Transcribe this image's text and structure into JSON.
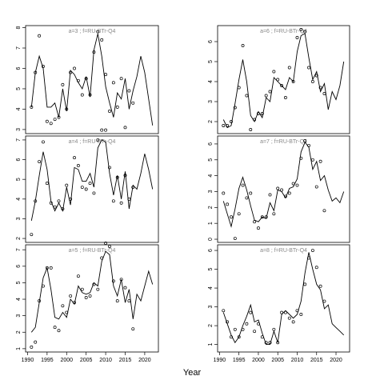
{
  "xlabel": "Year",
  "chart_data": [
    {
      "type": "line",
      "title": "a=3 ; f=RU-BTr-Q4",
      "xlim": [
        1989.5,
        2023.5
      ],
      "ylim": [
        2.8,
        8.1
      ],
      "yticks": [
        3,
        4,
        5,
        6,
        7,
        8
      ],
      "x": [
        1991,
        1992,
        1993,
        1994,
        1995,
        1996,
        1997,
        1998,
        1999,
        2000,
        2001,
        2002,
        2003,
        2004,
        2005,
        2006,
        2007,
        2008,
        2009,
        2010,
        2011,
        2012,
        2013,
        2014,
        2015,
        2016,
        2017,
        2018,
        2019,
        2020,
        2021,
        2022
      ],
      "values": [
        4.1,
        5.8,
        6.6,
        6.0,
        4.1,
        4.1,
        4.3,
        3.6,
        5.0,
        3.9,
        5.9,
        5.7,
        5.3,
        5.0,
        5.6,
        4.6,
        6.9,
        7.7,
        6.6,
        5.1,
        4.3,
        3.6,
        4.8,
        4.5,
        5.5,
        4.0,
        4.9,
        5.6,
        6.6,
        5.8,
        4.5,
        3.2
      ],
      "points_x": [
        1991,
        1992,
        1993,
        1994,
        1995,
        1996,
        1997,
        1998,
        1999,
        2000,
        2001,
        2002,
        2003,
        2004,
        2005,
        2006,
        2007,
        2008,
        2009,
        2010,
        2011,
        2012,
        2013,
        2014,
        2015,
        2016,
        2017
      ],
      "points": [
        4.1,
        5.8,
        7.6,
        6.1,
        3.4,
        3.3,
        3.5,
        3.6,
        5.2,
        4.0,
        5.8,
        6.0,
        5.4,
        4.7,
        5.5,
        4.7,
        6.8,
        7.8,
        7.4,
        5.7,
        3.9,
        5.3,
        4.1,
        5.5,
        3.1,
        4.9,
        4.3
      ]
    },
    {
      "type": "line",
      "title": "a=6 ; f=RU-BTr-Q4",
      "xlim": [
        1989.5,
        2023.5
      ],
      "ylim": [
        1.4,
        6.8
      ],
      "yticks": [
        2,
        3,
        4,
        5,
        6
      ],
      "x": [
        1991,
        1992,
        1993,
        1994,
        1995,
        1996,
        1997,
        1998,
        1999,
        2000,
        2001,
        2002,
        2003,
        2004,
        2005,
        2006,
        2007,
        2008,
        2009,
        2010,
        2011,
        2012,
        2013,
        2014,
        2015,
        2016,
        2017,
        2018,
        2019,
        2020,
        2021,
        2022
      ],
      "values": [
        2.1,
        1.7,
        1.8,
        2.9,
        4.1,
        5.1,
        4.0,
        2.3,
        2.0,
        2.5,
        2.2,
        3.2,
        3.0,
        4.2,
        4.0,
        3.8,
        3.6,
        4.2,
        4.0,
        5.5,
        6.3,
        6.4,
        5.2,
        4.1,
        4.5,
        3.5,
        3.9,
        2.6,
        3.5,
        3.1,
        3.8,
        5.0
      ],
      "points_x": [
        1991,
        1992,
        1993,
        1994,
        1995,
        1996,
        1997,
        1998,
        1999,
        2000,
        2001,
        2002,
        2003,
        2004,
        2005,
        2006,
        2007,
        2008,
        2009,
        2010,
        2011,
        2012,
        2013,
        2014,
        2015,
        2016,
        2017
      ],
      "points": [
        1.8,
        1.8,
        2.0,
        2.7,
        3.7,
        5.8,
        3.3,
        1.6,
        2.1,
        2.4,
        2.4,
        3.3,
        3.5,
        4.5,
        4.1,
        3.8,
        3.2,
        4.7,
        4.0,
        6.2,
        6.6,
        6.5,
        4.7,
        4.0,
        4.3,
        3.7,
        3.4
      ]
    },
    {
      "type": "line",
      "title": "a=4 ; f=RU-BTr-Q4",
      "xlim": [
        1989.5,
        2023.5
      ],
      "ylim": [
        1.8,
        7.2
      ],
      "yticks": [
        2,
        3,
        4,
        5,
        6,
        7
      ],
      "x": [
        1991,
        1992,
        1993,
        1994,
        1995,
        1996,
        1997,
        1998,
        1999,
        2000,
        2001,
        2002,
        2003,
        2004,
        2005,
        2006,
        2007,
        2008,
        2009,
        2010,
        2011,
        2012,
        2013,
        2014,
        2015,
        2016,
        2017,
        2018,
        2019,
        2020,
        2021,
        2022
      ],
      "values": [
        2.9,
        3.9,
        5.2,
        6.4,
        5.5,
        3.9,
        3.4,
        3.8,
        3.4,
        4.6,
        3.7,
        5.6,
        5.5,
        4.9,
        4.9,
        5.3,
        4.6,
        6.6,
        7.0,
        6.9,
        5.3,
        4.2,
        5.2,
        4.0,
        5.4,
        3.5,
        4.7,
        4.5,
        5.3,
        6.3,
        5.5,
        4.5
      ],
      "points_x": [
        1991,
        1992,
        1993,
        1994,
        1995,
        1996,
        1997,
        1998,
        1999,
        2000,
        2001,
        2002,
        2003,
        2004,
        2005,
        2006,
        2007,
        2008,
        2009,
        2010,
        2011,
        2012,
        2013,
        2014,
        2015,
        2016,
        2017
      ],
      "points": [
        2.2,
        3.9,
        5.9,
        6.9,
        4.8,
        3.8,
        3.6,
        3.9,
        3.5,
        4.7,
        4.0,
        6.1,
        5.7,
        4.6,
        4.5,
        4.8,
        4.3,
        7.0,
        7.5,
        7.5,
        5.6,
        3.9,
        5.1,
        3.8,
        5.2,
        4.0,
        4.6
      ]
    },
    {
      "type": "line",
      "title": "a=7 ; f=RU-BTr-Q4",
      "xlim": [
        1989.5,
        2023.5
      ],
      "ylim": [
        -0.2,
        6.5
      ],
      "yticks": [
        0,
        1,
        2,
        3,
        4,
        5,
        6
      ],
      "x": [
        1991,
        1992,
        1993,
        1994,
        1995,
        1996,
        1997,
        1998,
        1999,
        2000,
        2001,
        2002,
        2003,
        2004,
        2005,
        2006,
        2007,
        2008,
        2009,
        2010,
        2011,
        2012,
        2013,
        2014,
        2015,
        2016,
        2017,
        2018,
        2019,
        2020,
        2021,
        2022
      ],
      "values": [
        2.4,
        1.6,
        0.8,
        1.9,
        3.2,
        3.9,
        3.1,
        2.1,
        1.2,
        1.1,
        1.4,
        1.3,
        2.3,
        1.8,
        3.1,
        3.0,
        2.6,
        3.2,
        3.3,
        3.8,
        5.5,
        6.1,
        5.8,
        4.4,
        4.9,
        3.7,
        4.0,
        3.1,
        2.4,
        2.6,
        2.3,
        3.0
      ],
      "points_x": [
        1991,
        1992,
        1993,
        1994,
        1995,
        1996,
        1997,
        1998,
        1999,
        2000,
        2001,
        2002,
        2003,
        2004,
        2005,
        2006,
        2007,
        2008,
        2009,
        2010,
        2011,
        2012,
        2013,
        2014,
        2015,
        2016,
        2017
      ],
      "points": [
        2.9,
        2.2,
        1.4,
        0.05,
        1.6,
        3.4,
        2.6,
        2.9,
        1.1,
        0.7,
        1.4,
        1.4,
        2.8,
        1.6,
        3.2,
        3.1,
        2.7,
        2.9,
        3.5,
        3.4,
        5.1,
        6.2,
        5.9,
        5.0,
        3.3,
        4.9,
        1.8
      ]
    },
    {
      "type": "line",
      "title": "a=5 ; f=RU-BTr-Q4",
      "xlim": [
        1989.5,
        2023.5
      ],
      "ylim": [
        0.8,
        7.3
      ],
      "yticks": [
        1,
        2,
        3,
        4,
        5,
        6,
        7
      ],
      "xticks": [
        1990,
        1995,
        2000,
        2005,
        2010,
        2015,
        2020
      ],
      "x": [
        1991,
        1992,
        1993,
        1994,
        1995,
        1996,
        1997,
        1998,
        1999,
        2000,
        2001,
        2002,
        2003,
        2004,
        2005,
        2006,
        2007,
        2008,
        2009,
        2010,
        2011,
        2012,
        2013,
        2014,
        2015,
        2016,
        2017,
        2018,
        2019,
        2020,
        2021,
        2022
      ],
      "values": [
        2.0,
        2.3,
        3.8,
        5.3,
        5.9,
        4.6,
        2.9,
        2.8,
        3.2,
        2.9,
        4.0,
        3.7,
        4.8,
        4.4,
        4.3,
        4.4,
        5.0,
        4.8,
        6.3,
        6.9,
        6.7,
        4.8,
        4.2,
        5.2,
        3.8,
        4.6,
        2.8,
        4.3,
        3.9,
        4.8,
        5.7,
        4.9
      ],
      "points_x": [
        1991,
        1992,
        1993,
        1994,
        1995,
        1996,
        1997,
        1998,
        1999,
        2000,
        2001,
        2002,
        2003,
        2004,
        2005,
        2006,
        2007,
        2008,
        2009,
        2010,
        2011,
        2012,
        2013,
        2014,
        2015,
        2016,
        2017
      ],
      "points": [
        1.1,
        1.4,
        3.9,
        4.8,
        5.9,
        5.9,
        2.3,
        2.1,
        3.6,
        3.2,
        4.2,
        3.8,
        5.4,
        4.6,
        4.1,
        4.2,
        4.9,
        4.6,
        6.5,
        7.4,
        7.2,
        5.1,
        3.9,
        5.2,
        4.7,
        3.9,
        2.2
      ]
    },
    {
      "type": "line",
      "title": "a=8 ; f=RU-BTr-Q4",
      "xlim": [
        1989.5,
        2023.5
      ],
      "ylim": [
        0.6,
        6.3
      ],
      "yticks": [
        1,
        2,
        3,
        4,
        5,
        6
      ],
      "xticks": [
        1990,
        1995,
        2000,
        2005,
        2010,
        2015,
        2020
      ],
      "x": [
        1991,
        1992,
        1993,
        1994,
        1995,
        1996,
        1997,
        1998,
        1999,
        2000,
        2001,
        2002,
        2003,
        2004,
        2005,
        2006,
        2007,
        2008,
        2009,
        2010,
        2011,
        2012,
        2013,
        2014,
        2015,
        2016,
        2017,
        2018,
        2019,
        2020,
        2021,
        2022
      ],
      "values": [
        2.7,
        2.1,
        1.5,
        1.1,
        1.4,
        2.0,
        2.5,
        3.1,
        2.2,
        2.3,
        1.6,
        1.0,
        1.0,
        1.7,
        1.1,
        2.6,
        2.8,
        2.6,
        2.4,
        2.6,
        3.3,
        4.8,
        5.9,
        5.0,
        4.2,
        3.9,
        2.9,
        3.1,
        2.1,
        1.9,
        1.7,
        1.5
      ],
      "points_x": [
        1991,
        1992,
        1993,
        1994,
        1995,
        1996,
        1997,
        1998,
        1999,
        2000,
        2001,
        2002,
        2003,
        2004,
        2005,
        2006,
        2007,
        2008,
        2009,
        2010,
        2011,
        2012,
        2013,
        2014,
        2015,
        2016,
        2017
      ],
      "points": [
        2.8,
        2.2,
        1.4,
        1.8,
        1.4,
        1.8,
        2.1,
        2.7,
        1.7,
        2.1,
        1.4,
        1.1,
        1.1,
        1.8,
        1.1,
        2.7,
        2.7,
        2.4,
        2.2,
        2.8,
        2.6,
        4.2,
        5.6,
        6.0,
        5.1,
        4.1,
        3.3
      ]
    }
  ]
}
